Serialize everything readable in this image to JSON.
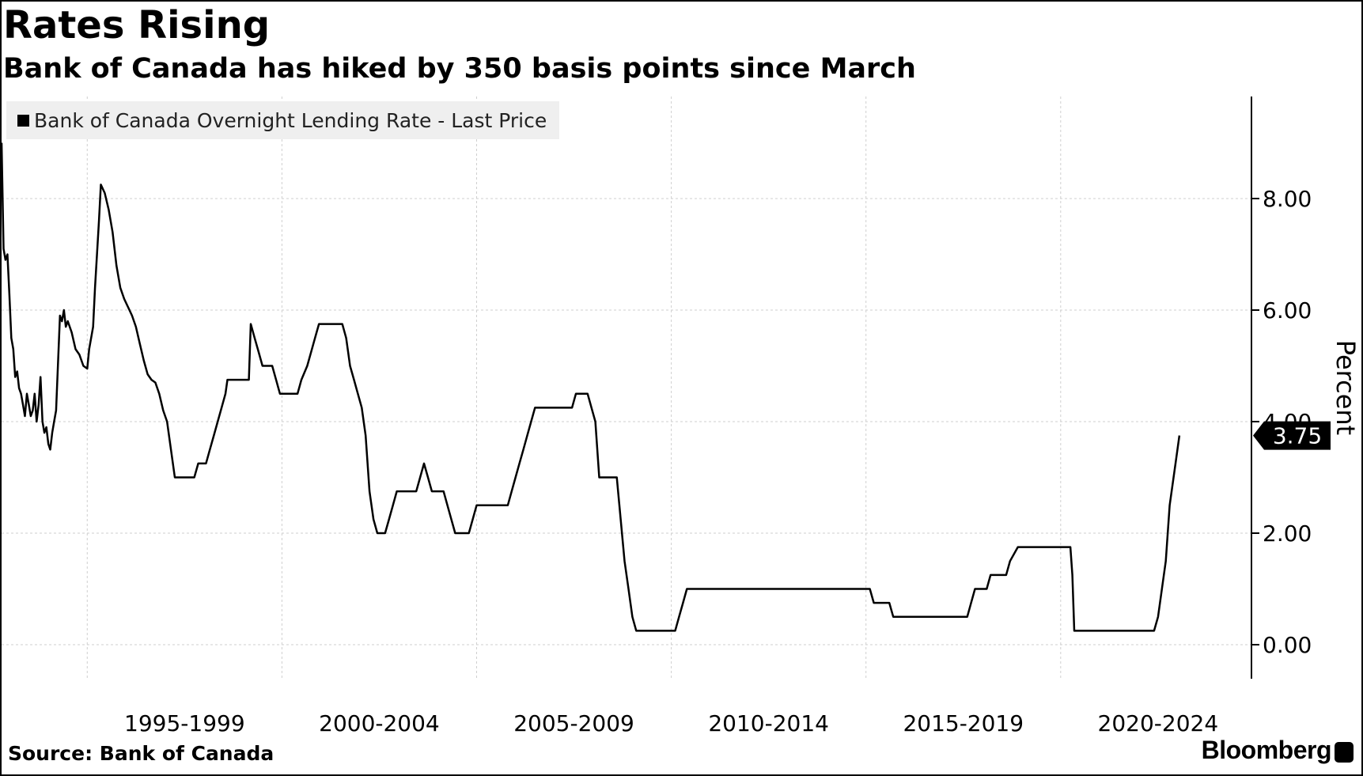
{
  "title": "Rates Rising",
  "subtitle": "Bank of Canada has hiked by 350 basis points since March",
  "source": "Source: Bank of Canada",
  "brand": "Bloomberg",
  "colors": {
    "background": "#ffffff",
    "line": "#000000",
    "grid": "#cfcfcf",
    "legend_bg": "#efefef",
    "label_bg": "#000000"
  },
  "icons": [
    "bloomberg-logo-icon",
    "legend-swatch-icon"
  ],
  "chart_data": {
    "type": "line",
    "title": "Rates Rising",
    "subtitle": "Bank of Canada has hiked by 350 basis points since March",
    "ylabel": "Percent",
    "xlabel": "",
    "legend": "top-left",
    "grid": true,
    "last_value_label": "3.75",
    "ylim": [
      -0.6,
      9.9
    ],
    "xlim": [
      1990.8,
      2022.9
    ],
    "yticks": [
      0,
      2,
      4,
      6,
      8
    ],
    "ytick_labels": [
      "0.00",
      "2.00",
      "4.00",
      "6.00",
      "8.00"
    ],
    "x_period_labels": [
      "1995-1999",
      "2000-2004",
      "2005-2009",
      "2010-2014",
      "2015-2019",
      "2020-2024"
    ],
    "x_period_centers": [
      1995.5,
      2000.5,
      2005.5,
      2010.5,
      2015.5,
      2020.5
    ],
    "x_period_boundaries": [
      1993,
      1998,
      2003,
      2008,
      2013,
      2018
    ],
    "series": [
      {
        "name": "Bank of Canada Overnight Lending Rate - Last Price",
        "points": [
          [
            1990.8,
            9.0
          ],
          [
            1990.85,
            7.1
          ],
          [
            1990.9,
            6.9
          ],
          [
            1990.95,
            7.0
          ],
          [
            1991.0,
            6.3
          ],
          [
            1991.05,
            5.5
          ],
          [
            1991.1,
            5.3
          ],
          [
            1991.15,
            4.8
          ],
          [
            1991.2,
            4.9
          ],
          [
            1991.25,
            4.6
          ],
          [
            1991.3,
            4.5
          ],
          [
            1991.35,
            4.3
          ],
          [
            1991.4,
            4.1
          ],
          [
            1991.45,
            4.5
          ],
          [
            1991.5,
            4.3
          ],
          [
            1991.55,
            4.1
          ],
          [
            1991.6,
            4.2
          ],
          [
            1991.65,
            4.5
          ],
          [
            1991.7,
            4.0
          ],
          [
            1991.75,
            4.3
          ],
          [
            1991.8,
            4.8
          ],
          [
            1991.85,
            4.0
          ],
          [
            1991.9,
            3.8
          ],
          [
            1991.95,
            3.9
          ],
          [
            1992.0,
            3.6
          ],
          [
            1992.05,
            3.5
          ],
          [
            1992.1,
            3.8
          ],
          [
            1992.15,
            4.0
          ],
          [
            1992.2,
            4.2
          ],
          [
            1992.3,
            5.9
          ],
          [
            1992.35,
            5.8
          ],
          [
            1992.4,
            6.0
          ],
          [
            1992.45,
            5.7
          ],
          [
            1992.5,
            5.8
          ],
          [
            1992.6,
            5.6
          ],
          [
            1992.7,
            5.3
          ],
          [
            1992.8,
            5.2
          ],
          [
            1992.9,
            5.0
          ],
          [
            1993.0,
            4.95
          ],
          [
            1993.05,
            5.3
          ],
          [
            1993.1,
            5.5
          ],
          [
            1993.15,
            5.7
          ],
          [
            1993.2,
            6.4
          ],
          [
            1993.3,
            7.6
          ],
          [
            1993.35,
            8.25
          ],
          [
            1993.45,
            8.1
          ],
          [
            1993.55,
            7.8
          ],
          [
            1993.65,
            7.4
          ],
          [
            1993.75,
            6.8
          ],
          [
            1993.85,
            6.4
          ],
          [
            1993.95,
            6.2
          ],
          [
            1994.05,
            6.05
          ],
          [
            1994.15,
            5.9
          ],
          [
            1994.25,
            5.7
          ],
          [
            1994.35,
            5.4
          ],
          [
            1994.45,
            5.1
          ],
          [
            1994.55,
            4.85
          ],
          [
            1994.65,
            4.75
          ],
          [
            1994.75,
            4.7
          ],
          [
            1994.85,
            4.5
          ],
          [
            1994.95,
            4.2
          ],
          [
            1995.05,
            4.0
          ],
          [
            1995.15,
            3.5
          ],
          [
            1995.25,
            3.0
          ],
          [
            1995.6,
            3.0
          ],
          [
            1995.75,
            3.0
          ],
          [
            1995.85,
            3.25
          ],
          [
            1996.05,
            3.25
          ],
          [
            1996.15,
            3.5
          ],
          [
            1996.25,
            3.75
          ],
          [
            1996.35,
            4.0
          ],
          [
            1996.45,
            4.25
          ],
          [
            1996.55,
            4.5
          ],
          [
            1996.6,
            4.75
          ],
          [
            1997.05,
            4.75
          ],
          [
            1997.15,
            4.75
          ],
          [
            1997.2,
            5.75
          ],
          [
            1997.3,
            5.5
          ],
          [
            1997.4,
            5.25
          ],
          [
            1997.5,
            5.0
          ],
          [
            1997.75,
            5.0
          ],
          [
            1997.85,
            4.75
          ],
          [
            1997.95,
            4.5
          ],
          [
            1998.4,
            4.5
          ],
          [
            1998.5,
            4.75
          ],
          [
            1998.65,
            5.0
          ],
          [
            1998.75,
            5.25
          ],
          [
            1998.85,
            5.5
          ],
          [
            1998.95,
            5.75
          ],
          [
            1999.55,
            5.75
          ],
          [
            1999.65,
            5.5
          ],
          [
            1999.75,
            5.0
          ],
          [
            1999.85,
            4.75
          ],
          [
            1999.95,
            4.5
          ],
          [
            2000.05,
            4.25
          ],
          [
            2000.15,
            3.75
          ],
          [
            2000.25,
            2.75
          ],
          [
            2000.35,
            2.25
          ],
          [
            2000.45,
            2.0
          ],
          [
            2000.65,
            2.0
          ],
          [
            2000.75,
            2.25
          ],
          [
            2000.85,
            2.5
          ],
          [
            2000.95,
            2.75
          ],
          [
            2001.45,
            2.75
          ],
          [
            2001.55,
            3.0
          ],
          [
            2001.65,
            3.25
          ],
          [
            2001.75,
            3.0
          ],
          [
            2001.85,
            2.75
          ],
          [
            2002.15,
            2.75
          ],
          [
            2002.25,
            2.5
          ],
          [
            2002.35,
            2.25
          ],
          [
            2002.45,
            2.0
          ],
          [
            2002.8,
            2.0
          ],
          [
            2002.9,
            2.25
          ],
          [
            2003.0,
            2.5
          ],
          [
            2003.8,
            2.5
          ],
          [
            2003.9,
            2.75
          ],
          [
            2004.0,
            3.0
          ],
          [
            2004.1,
            3.25
          ],
          [
            2004.2,
            3.5
          ],
          [
            2004.3,
            3.75
          ],
          [
            2004.4,
            4.0
          ],
          [
            2004.5,
            4.25
          ],
          [
            2005.45,
            4.25
          ],
          [
            2005.55,
            4.5
          ],
          [
            2005.85,
            4.5
          ],
          [
            2005.95,
            4.25
          ],
          [
            2006.05,
            4.0
          ],
          [
            2006.15,
            3.0
          ],
          [
            2006.6,
            3.0
          ],
          [
            2006.7,
            2.25
          ],
          [
            2006.8,
            1.5
          ],
          [
            2006.9,
            1.0
          ],
          [
            2007.0,
            0.5
          ],
          [
            2007.1,
            0.25
          ],
          [
            2008.1,
            0.25
          ],
          [
            2008.2,
            0.5
          ],
          [
            2008.3,
            0.75
          ],
          [
            2008.4,
            1.0
          ],
          [
            2013.1,
            1.0
          ],
          [
            2013.2,
            0.75
          ],
          [
            2013.6,
            0.75
          ],
          [
            2013.7,
            0.5
          ],
          [
            2015.6,
            0.5
          ],
          [
            2015.7,
            0.75
          ],
          [
            2015.8,
            1.0
          ],
          [
            2016.1,
            1.0
          ],
          [
            2016.2,
            1.25
          ],
          [
            2016.6,
            1.25
          ],
          [
            2016.7,
            1.5
          ],
          [
            2016.9,
            1.75
          ],
          [
            2018.25,
            1.75
          ],
          [
            2018.3,
            1.25
          ],
          [
            2018.35,
            0.25
          ],
          [
            2020.4,
            0.25
          ],
          [
            2020.5,
            0.5
          ],
          [
            2020.6,
            1.0
          ],
          [
            2020.7,
            1.5
          ],
          [
            2020.8,
            2.5
          ],
          [
            2020.95,
            3.25
          ],
          [
            2021.05,
            3.75
          ]
        ]
      }
    ]
  }
}
